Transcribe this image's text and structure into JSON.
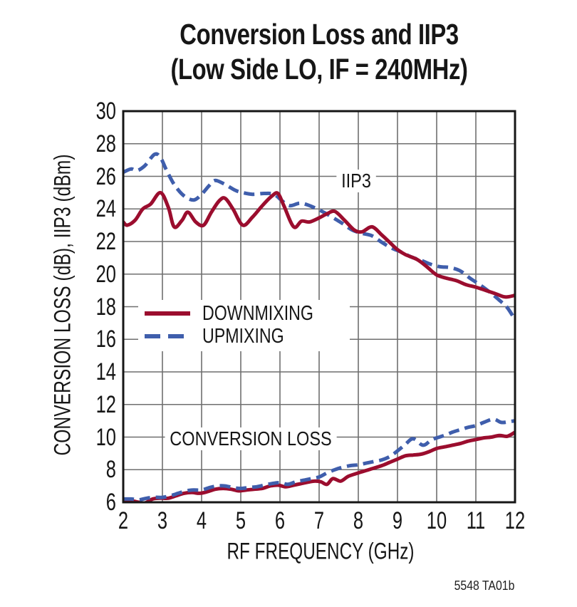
{
  "title": {
    "line1": "Conversion Loss and IIP3",
    "line2": "(Low Side LO, IF = 240MHz)"
  },
  "footer": "5548 TA01b",
  "colors": {
    "downmixing": "#9B0D2E",
    "upmixing": "#3F5EAC",
    "grid": "#6f6f6f",
    "axis": "#161616"
  },
  "chart_data": {
    "type": "line",
    "title": "Conversion Loss and IIP3 (Low Side LO, IF = 240MHz)",
    "xlabel": "RF FREQUENCY (GHz)",
    "ylabel": "CONVERSION LOSS (dB), IIP3 (dBm)",
    "xlim": [
      2,
      12
    ],
    "ylim": [
      6,
      30
    ],
    "x_ticks": [
      2,
      3,
      4,
      5,
      6,
      7,
      8,
      9,
      10,
      11,
      12
    ],
    "y_ticks": [
      30,
      28,
      26,
      24,
      22,
      20,
      18,
      16,
      14,
      12,
      10,
      8,
      6
    ],
    "grid": true,
    "legend": {
      "position": "inside-middle-left",
      "items": [
        {
          "label": "DOWNMIXING",
          "style": "solid",
          "color": "#9B0D2E"
        },
        {
          "label": "UPMIXING",
          "style": "dashed",
          "color": "#3F5EAC"
        }
      ]
    },
    "annotations": [
      {
        "text": "IIP3",
        "x": 7.95,
        "y": 25.7
      },
      {
        "text": "CONVERSION LOSS",
        "x": 5.25,
        "y": 9.9
      }
    ],
    "series": [
      {
        "name": "IIP3 DOWNMIXING",
        "group": "IIP3",
        "legend": "DOWNMIXING",
        "color": "#9B0D2E",
        "style": "solid",
        "points": [
          [
            2.0,
            23.2
          ],
          [
            2.1,
            23.0
          ],
          [
            2.3,
            23.3
          ],
          [
            2.5,
            24.0
          ],
          [
            2.7,
            24.3
          ],
          [
            2.95,
            25.0
          ],
          [
            3.15,
            24.1
          ],
          [
            3.3,
            22.9
          ],
          [
            3.5,
            23.3
          ],
          [
            3.65,
            23.8
          ],
          [
            3.85,
            23.2
          ],
          [
            4.05,
            23.0
          ],
          [
            4.25,
            23.8
          ],
          [
            4.45,
            24.5
          ],
          [
            4.6,
            24.65
          ],
          [
            4.8,
            24.0
          ],
          [
            5.05,
            23.0
          ],
          [
            5.3,
            23.5
          ],
          [
            5.55,
            24.2
          ],
          [
            5.8,
            24.8
          ],
          [
            5.95,
            24.95
          ],
          [
            6.1,
            24.2
          ],
          [
            6.35,
            22.9
          ],
          [
            6.55,
            23.25
          ],
          [
            6.75,
            23.2
          ],
          [
            7.0,
            23.45
          ],
          [
            7.2,
            23.7
          ],
          [
            7.4,
            23.85
          ],
          [
            7.65,
            23.3
          ],
          [
            7.9,
            22.7
          ],
          [
            8.1,
            22.6
          ],
          [
            8.35,
            22.9
          ],
          [
            8.6,
            22.4
          ],
          [
            8.8,
            21.95
          ],
          [
            9.0,
            21.5
          ],
          [
            9.2,
            21.2
          ],
          [
            9.5,
            20.9
          ],
          [
            9.75,
            20.45
          ],
          [
            10.0,
            19.95
          ],
          [
            10.25,
            19.75
          ],
          [
            10.5,
            19.6
          ],
          [
            10.75,
            19.35
          ],
          [
            11.0,
            19.2
          ],
          [
            11.25,
            19.0
          ],
          [
            11.5,
            18.8
          ],
          [
            11.75,
            18.6
          ],
          [
            12.0,
            18.7
          ]
        ]
      },
      {
        "name": "IIP3 UPMIXING",
        "group": "IIP3",
        "legend": "UPMIXING",
        "color": "#3F5EAC",
        "style": "dashed",
        "points": [
          [
            2.0,
            26.25
          ],
          [
            2.2,
            26.45
          ],
          [
            2.35,
            26.35
          ],
          [
            2.55,
            26.65
          ],
          [
            2.8,
            27.35
          ],
          [
            2.95,
            27.15
          ],
          [
            3.1,
            26.4
          ],
          [
            3.3,
            25.5
          ],
          [
            3.55,
            24.8
          ],
          [
            3.8,
            24.55
          ],
          [
            4.0,
            24.9
          ],
          [
            4.2,
            25.45
          ],
          [
            4.35,
            25.75
          ],
          [
            4.6,
            25.5
          ],
          [
            4.85,
            25.15
          ],
          [
            5.05,
            25.0
          ],
          [
            5.3,
            24.9
          ],
          [
            5.6,
            24.95
          ],
          [
            5.85,
            24.9
          ],
          [
            6.05,
            24.5
          ],
          [
            6.25,
            24.2
          ],
          [
            6.5,
            24.35
          ],
          [
            6.7,
            24.25
          ],
          [
            6.95,
            24.0
          ],
          [
            7.15,
            23.75
          ],
          [
            7.4,
            23.4
          ],
          [
            7.6,
            23.1
          ],
          [
            7.85,
            22.7
          ],
          [
            8.1,
            22.5
          ],
          [
            8.35,
            22.35
          ],
          [
            8.6,
            21.95
          ],
          [
            8.85,
            21.6
          ],
          [
            9.1,
            21.35
          ],
          [
            9.35,
            21.05
          ],
          [
            9.6,
            20.85
          ],
          [
            9.85,
            20.6
          ],
          [
            10.1,
            20.45
          ],
          [
            10.35,
            20.4
          ],
          [
            10.6,
            20.2
          ],
          [
            10.85,
            19.75
          ],
          [
            11.1,
            19.35
          ],
          [
            11.35,
            18.9
          ],
          [
            11.6,
            18.4
          ],
          [
            11.8,
            17.95
          ],
          [
            12.0,
            17.2
          ]
        ]
      },
      {
        "name": "CONVERSION LOSS DOWNMIXING",
        "group": "CONVERSION LOSS",
        "legend": "DOWNMIXING",
        "color": "#9B0D2E",
        "style": "solid",
        "points": [
          [
            2.0,
            6.15
          ],
          [
            2.2,
            6.1
          ],
          [
            2.4,
            6.0
          ],
          [
            2.55,
            5.95
          ],
          [
            2.75,
            6.2
          ],
          [
            2.95,
            6.25
          ],
          [
            3.15,
            6.25
          ],
          [
            3.35,
            6.4
          ],
          [
            3.55,
            6.55
          ],
          [
            3.75,
            6.6
          ],
          [
            3.95,
            6.55
          ],
          [
            4.15,
            6.65
          ],
          [
            4.35,
            6.8
          ],
          [
            4.55,
            6.85
          ],
          [
            4.75,
            6.8
          ],
          [
            4.95,
            6.7
          ],
          [
            5.15,
            6.75
          ],
          [
            5.35,
            6.8
          ],
          [
            5.55,
            6.85
          ],
          [
            5.75,
            7.0
          ],
          [
            5.95,
            7.05
          ],
          [
            6.15,
            6.95
          ],
          [
            6.35,
            7.05
          ],
          [
            6.55,
            7.15
          ],
          [
            6.75,
            7.25
          ],
          [
            6.9,
            7.3
          ],
          [
            7.05,
            7.25
          ],
          [
            7.2,
            7.1
          ],
          [
            7.35,
            7.45
          ],
          [
            7.55,
            7.3
          ],
          [
            7.75,
            7.6
          ],
          [
            8.0,
            7.8
          ],
          [
            8.2,
            7.95
          ],
          [
            8.4,
            8.1
          ],
          [
            8.6,
            8.25
          ],
          [
            8.8,
            8.45
          ],
          [
            9.0,
            8.65
          ],
          [
            9.2,
            8.85
          ],
          [
            9.4,
            8.9
          ],
          [
            9.6,
            8.95
          ],
          [
            9.8,
            9.1
          ],
          [
            10.0,
            9.3
          ],
          [
            10.2,
            9.4
          ],
          [
            10.4,
            9.5
          ],
          [
            10.6,
            9.6
          ],
          [
            10.8,
            9.75
          ],
          [
            11.0,
            9.85
          ],
          [
            11.2,
            9.95
          ],
          [
            11.4,
            10.0
          ],
          [
            11.6,
            10.1
          ],
          [
            11.8,
            10.05
          ],
          [
            12.0,
            10.3
          ]
        ]
      },
      {
        "name": "CONVERSION LOSS UPMIXING",
        "group": "CONVERSION LOSS",
        "legend": "UPMIXING",
        "color": "#3F5EAC",
        "style": "dashed",
        "points": [
          [
            2.0,
            6.2
          ],
          [
            2.2,
            6.2
          ],
          [
            2.4,
            6.15
          ],
          [
            2.6,
            6.25
          ],
          [
            2.8,
            6.3
          ],
          [
            3.0,
            6.3
          ],
          [
            3.2,
            6.4
          ],
          [
            3.4,
            6.55
          ],
          [
            3.6,
            6.7
          ],
          [
            3.8,
            6.75
          ],
          [
            4.0,
            6.75
          ],
          [
            4.2,
            6.9
          ],
          [
            4.4,
            7.0
          ],
          [
            4.6,
            7.0
          ],
          [
            4.8,
            6.9
          ],
          [
            5.0,
            6.85
          ],
          [
            5.2,
            6.9
          ],
          [
            5.4,
            6.95
          ],
          [
            5.6,
            7.05
          ],
          [
            5.8,
            7.15
          ],
          [
            6.0,
            7.2
          ],
          [
            6.2,
            7.1
          ],
          [
            6.4,
            7.25
          ],
          [
            6.6,
            7.35
          ],
          [
            6.8,
            7.45
          ],
          [
            7.0,
            7.55
          ],
          [
            7.2,
            7.8
          ],
          [
            7.4,
            8.0
          ],
          [
            7.6,
            8.15
          ],
          [
            7.8,
            8.25
          ],
          [
            8.0,
            8.3
          ],
          [
            8.2,
            8.4
          ],
          [
            8.4,
            8.5
          ],
          [
            8.6,
            8.6
          ],
          [
            8.8,
            8.8
          ],
          [
            9.0,
            9.15
          ],
          [
            9.2,
            9.55
          ],
          [
            9.4,
            9.9
          ],
          [
            9.65,
            9.5
          ],
          [
            9.85,
            9.8
          ],
          [
            10.0,
            9.95
          ],
          [
            10.2,
            10.1
          ],
          [
            10.4,
            10.3
          ],
          [
            10.6,
            10.45
          ],
          [
            10.8,
            10.6
          ],
          [
            11.0,
            10.7
          ],
          [
            11.2,
            10.9
          ],
          [
            11.45,
            11.1
          ],
          [
            11.65,
            10.9
          ],
          [
            11.85,
            10.95
          ],
          [
            12.0,
            11.0
          ]
        ]
      }
    ]
  }
}
